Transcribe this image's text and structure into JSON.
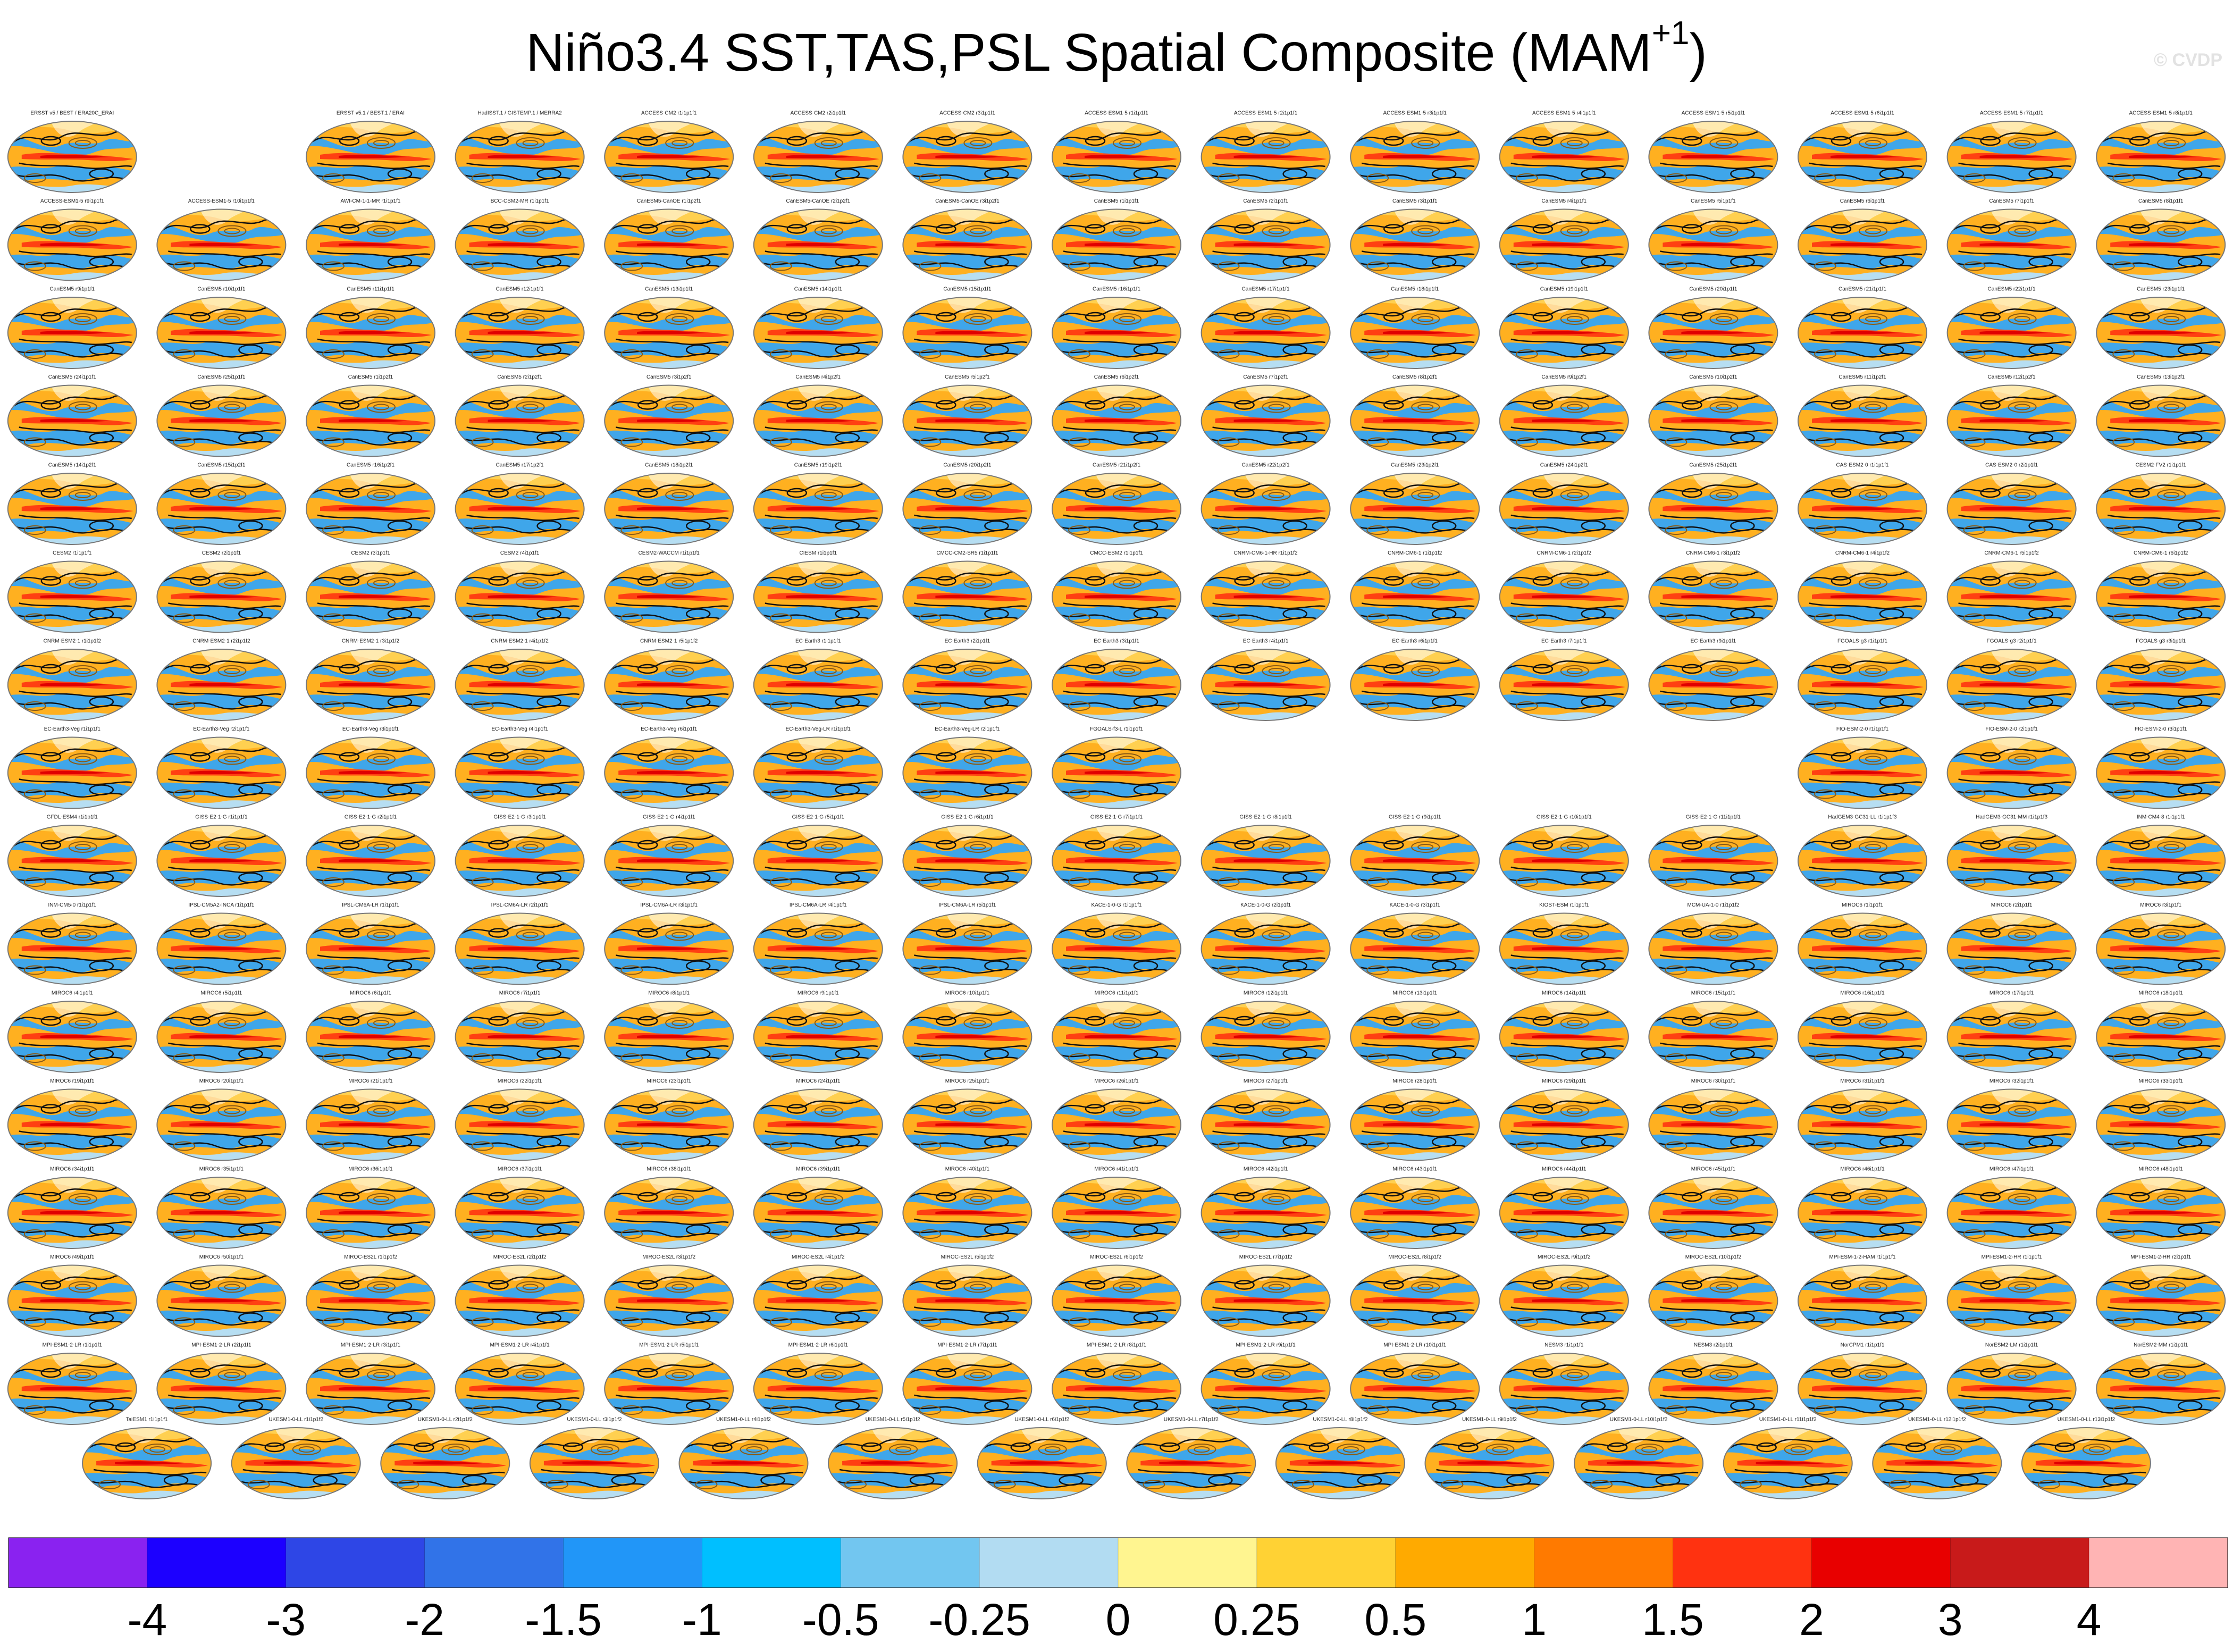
{
  "header": {
    "title": "Niño3.4 SST,TAS,PSL Spatial Composite (MAM",
    "title_superscript": "+1",
    "title_end": ")",
    "credit": "© CVDP"
  },
  "panels": {
    "rows": [
      [
        "ERSST v5 / BEST / ERA20C_ERAI",
        null,
        "ERSST v5.1 / BEST.1 / ERAI",
        "HadISST.1 / GISTEMP.1 / MERRA2",
        "ACCESS-CM2 r1i1p1f1",
        "ACCESS-CM2 r2i1p1f1",
        "ACCESS-CM2 r3i1p1f1",
        "ACCESS-ESM1-5 r1i1p1f1",
        "ACCESS-ESM1-5 r2i1p1f1",
        "ACCESS-ESM1-5 r3i1p1f1",
        "ACCESS-ESM1-5 r4i1p1f1",
        "ACCESS-ESM1-5 r5i1p1f1",
        "ACCESS-ESM1-5 r6i1p1f1",
        "ACCESS-ESM1-5 r7i1p1f1",
        "ACCESS-ESM1-5 r8i1p1f1"
      ],
      [
        "ACCESS-ESM1-5 r9i1p1f1",
        "ACCESS-ESM1-5 r10i1p1f1",
        "AWI-CM-1-1-MR r1i1p1f1",
        "BCC-CSM2-MR r1i1p1f1",
        "CanESM5-CanOE r1i1p2f1",
        "CanESM5-CanOE r2i1p2f1",
        "CanESM5-CanOE r3i1p2f1",
        "CanESM5 r1i1p1f1",
        "CanESM5 r2i1p1f1",
        "CanESM5 r3i1p1f1",
        "CanESM5 r4i1p1f1",
        "CanESM5 r5i1p1f1",
        "CanESM5 r6i1p1f1",
        "CanESM5 r7i1p1f1",
        "CanESM5 r8i1p1f1"
      ],
      [
        "CanESM5 r9i1p1f1",
        "CanESM5 r10i1p1f1",
        "CanESM5 r11i1p1f1",
        "CanESM5 r12i1p1f1",
        "CanESM5 r13i1p1f1",
        "CanESM5 r14i1p1f1",
        "CanESM5 r15i1p1f1",
        "CanESM5 r16i1p1f1",
        "CanESM5 r17i1p1f1",
        "CanESM5 r18i1p1f1",
        "CanESM5 r19i1p1f1",
        "CanESM5 r20i1p1f1",
        "CanESM5 r21i1p1f1",
        "CanESM5 r22i1p1f1",
        "CanESM5 r23i1p1f1"
      ],
      [
        "CanESM5 r24i1p1f1",
        "CanESM5 r25i1p1f1",
        "CanESM5 r1i1p2f1",
        "CanESM5 r2i1p2f1",
        "CanESM5 r3i1p2f1",
        "CanESM5 r4i1p2f1",
        "CanESM5 r5i1p2f1",
        "CanESM5 r6i1p2f1",
        "CanESM5 r7i1p2f1",
        "CanESM5 r8i1p2f1",
        "CanESM5 r9i1p2f1",
        "CanESM5 r10i1p2f1",
        "CanESM5 r11i1p2f1",
        "CanESM5 r12i1p2f1",
        "CanESM5 r13i1p2f1"
      ],
      [
        "CanESM5 r14i1p2f1",
        "CanESM5 r15i1p2f1",
        "CanESM5 r16i1p2f1",
        "CanESM5 r17i1p2f1",
        "CanESM5 r18i1p2f1",
        "CanESM5 r19i1p2f1",
        "CanESM5 r20i1p2f1",
        "CanESM5 r21i1p2f1",
        "CanESM5 r22i1p2f1",
        "CanESM5 r23i1p2f1",
        "CanESM5 r24i1p2f1",
        "CanESM5 r25i1p2f1",
        "CAS-ESM2-0 r1i1p1f1",
        "CAS-ESM2-0 r2i1p1f1",
        "CESM2-FV2 r1i1p1f1"
      ],
      [
        "CESM2 r1i1p1f1",
        "CESM2 r2i1p1f1",
        "CESM2 r3i1p1f1",
        "CESM2 r4i1p1f1",
        "CESM2-WACCM r1i1p1f1",
        "CIESM r1i1p1f1",
        "CMCC-CM2-SR5 r1i1p1f1",
        "CMCC-ESM2 r1i1p1f1",
        "CNRM-CM6-1-HR r1i1p1f2",
        "CNRM-CM6-1 r1i1p1f2",
        "CNRM-CM6-1 r2i1p1f2",
        "CNRM-CM6-1 r3i1p1f2",
        "CNRM-CM6-1 r4i1p1f2",
        "CNRM-CM6-1 r5i1p1f2",
        "CNRM-CM6-1 r6i1p1f2"
      ],
      [
        "CNRM-ESM2-1 r1i1p1f2",
        "CNRM-ESM2-1 r2i1p1f2",
        "CNRM-ESM2-1 r3i1p1f2",
        "CNRM-ESM2-1 r4i1p1f2",
        "CNRM-ESM2-1 r5i1p1f2",
        "EC-Earth3 r1i1p1f1",
        "EC-Earth3 r2i1p1f1",
        "EC-Earth3 r3i1p1f1",
        "EC-Earth3 r4i1p1f1",
        "EC-Earth3 r6i1p1f1",
        "EC-Earth3 r7i1p1f1",
        "EC-Earth3 r9i1p1f1",
        "FGOALS-g3 r1i1p1f1",
        "FGOALS-g3 r2i1p1f1",
        "FGOALS-g3 r3i1p1f1"
      ],
      [
        "EC-Earth3-Veg r1i1p1f1",
        "EC-Earth3-Veg r2i1p1f1",
        "EC-Earth3-Veg r3i1p1f1",
        "EC-Earth3-Veg r4i1p1f1",
        "EC-Earth3-Veg r6i1p1f1",
        "EC-Earth3-Veg-LR r1i1p1f1",
        "EC-Earth3-Veg-LR r2i1p1f1",
        "FGOALS-f3-L r1i1p1f1",
        null,
        null,
        null,
        null,
        "FIO-ESM-2-0 r1i1p1f1",
        "FIO-ESM-2-0 r2i1p1f1",
        "FIO-ESM-2-0 r3i1p1f1"
      ],
      [
        "GFDL-ESM4 r1i1p1f1",
        "GISS-E2-1-G r1i1p1f1",
        "GISS-E2-1-G r2i1p1f1",
        "GISS-E2-1-G r3i1p1f1",
        "GISS-E2-1-G r4i1p1f1",
        "GISS-E2-1-G r5i1p1f1",
        "GISS-E2-1-G r6i1p1f1",
        "GISS-E2-1-G r7i1p1f1",
        "GISS-E2-1-G r8i1p1f1",
        "GISS-E2-1-G r9i1p1f1",
        "GISS-E2-1-G r10i1p1f1",
        "GISS-E2-1-G r11i1p1f1",
        "HadGEM3-GC31-LL r1i1p1f3",
        "HadGEM3-GC31-MM r1i1p1f3",
        "INM-CM4-8 r1i1p1f1"
      ],
      [
        "INM-CM5-0 r1i1p1f1",
        "IPSL-CM5A2-INCA r1i1p1f1",
        "IPSL-CM6A-LR r1i1p1f1",
        "IPSL-CM6A-LR r2i1p1f1",
        "IPSL-CM6A-LR r3i1p1f1",
        "IPSL-CM6A-LR r4i1p1f1",
        "IPSL-CM6A-LR r5i1p1f1",
        "KACE-1-0-G r1i1p1f1",
        "KACE-1-0-G r2i1p1f1",
        "KACE-1-0-G r3i1p1f1",
        "KIOST-ESM r1i1p1f1",
        "MCM-UA-1-0 r1i1p1f2",
        "MIROC6 r1i1p1f1",
        "MIROC6 r2i1p1f1",
        "MIROC6 r3i1p1f1"
      ],
      [
        "MIROC6 r4i1p1f1",
        "MIROC6 r5i1p1f1",
        "MIROC6 r6i1p1f1",
        "MIROC6 r7i1p1f1",
        "MIROC6 r8i1p1f1",
        "MIROC6 r9i1p1f1",
        "MIROC6 r10i1p1f1",
        "MIROC6 r11i1p1f1",
        "MIROC6 r12i1p1f1",
        "MIROC6 r13i1p1f1",
        "MIROC6 r14i1p1f1",
        "MIROC6 r15i1p1f1",
        "MIROC6 r16i1p1f1",
        "MIROC6 r17i1p1f1",
        "MIROC6 r18i1p1f1"
      ],
      [
        "MIROC6 r19i1p1f1",
        "MIROC6 r20i1p1f1",
        "MIROC6 r21i1p1f1",
        "MIROC6 r22i1p1f1",
        "MIROC6 r23i1p1f1",
        "MIROC6 r24i1p1f1",
        "MIROC6 r25i1p1f1",
        "MIROC6 r26i1p1f1",
        "MIROC6 r27i1p1f1",
        "MIROC6 r28i1p1f1",
        "MIROC6 r29i1p1f1",
        "MIROC6 r30i1p1f1",
        "MIROC6 r31i1p1f1",
        "MIROC6 r32i1p1f1",
        "MIROC6 r33i1p1f1"
      ],
      [
        "MIROC6 r34i1p1f1",
        "MIROC6 r35i1p1f1",
        "MIROC6 r36i1p1f1",
        "MIROC6 r37i1p1f1",
        "MIROC6 r38i1p1f1",
        "MIROC6 r39i1p1f1",
        "MIROC6 r40i1p1f1",
        "MIROC6 r41i1p1f1",
        "MIROC6 r42i1p1f1",
        "MIROC6 r43i1p1f1",
        "MIROC6 r44i1p1f1",
        "MIROC6 r45i1p1f1",
        "MIROC6 r46i1p1f1",
        "MIROC6 r47i1p1f1",
        "MIROC6 r48i1p1f1"
      ],
      [
        "MIROC6 r49i1p1f1",
        "MIROC6 r50i1p1f1",
        "MIROC-ES2L r1i1p1f2",
        "MIROC-ES2L r2i1p1f2",
        "MIROC-ES2L r3i1p1f2",
        "MIROC-ES2L r4i1p1f2",
        "MIROC-ES2L r5i1p1f2",
        "MIROC-ES2L r6i1p1f2",
        "MIROC-ES2L r7i1p1f2",
        "MIROC-ES2L r8i1p1f2",
        "MIROC-ES2L r9i1p1f2",
        "MIROC-ES2L r10i1p1f2",
        "MPI-ESM-1-2-HAM r1i1p1f1",
        "MPI-ESM1-2-HR r1i1p1f1",
        "MPI-ESM1-2-HR r2i1p1f1"
      ],
      [
        "MPI-ESM1-2-LR r1i1p1f1",
        "MPI-ESM1-2-LR r2i1p1f1",
        "MPI-ESM1-2-LR r3i1p1f1",
        "MPI-ESM1-2-LR r4i1p1f1",
        "MPI-ESM1-2-LR r5i1p1f1",
        "MPI-ESM1-2-LR r6i1p1f1",
        "MPI-ESM1-2-LR r7i1p1f1",
        "MPI-ESM1-2-LR r8i1p1f1",
        "MPI-ESM1-2-LR r9i1p1f1",
        "MPI-ESM1-2-LR r10i1p1f1",
        "NESM3 r1i1p1f1",
        "NESM3 r2i1p1f1",
        "NorCPM1 r1i1p1f1",
        "NorESM2-LM r1i1p1f1",
        "NorESM2-MM r1i1p1f1"
      ],
      [
        "TaiESM1 r1i1p1f1",
        "UKESM1-0-LL r1i1p1f2",
        "UKESM1-0-LL r2i1p1f2",
        "UKESM1-0-LL r3i1p1f2",
        "UKESM1-0-LL r4i1p1f2",
        "UKESM1-0-LL r5i1p1f2",
        "UKESM1-0-LL r6i1p1f2",
        "UKESM1-0-LL r7i1p1f2",
        "UKESM1-0-LL r8i1p1f2",
        "UKESM1-0-LL r9i1p1f2",
        "UKESM1-0-LL r10i1p1f2",
        "UKESM1-0-LL r11i1p1f2",
        "UKESM1-0-LL r12i1p1f2",
        "UKESM1-0-LL r13i1p1f2"
      ]
    ]
  },
  "colorbar": {
    "colors": [
      "#8a22f0",
      "#1c00ff",
      "#2e46e6",
      "#3173e8",
      "#2196f8",
      "#00bfff",
      "#72c6f0",
      "#b2dcf2",
      "#fff590",
      "#ffd234",
      "#ffaa00",
      "#ff7a00",
      "#ff3210",
      "#e80000",
      "#c81a1a",
      "#ffb4b4"
    ],
    "levels": [
      -4,
      -3,
      -2,
      -1.5,
      -1,
      -0.5,
      -0.25,
      0,
      0.25,
      0.5,
      1,
      1.5,
      2,
      3,
      4
    ]
  }
}
